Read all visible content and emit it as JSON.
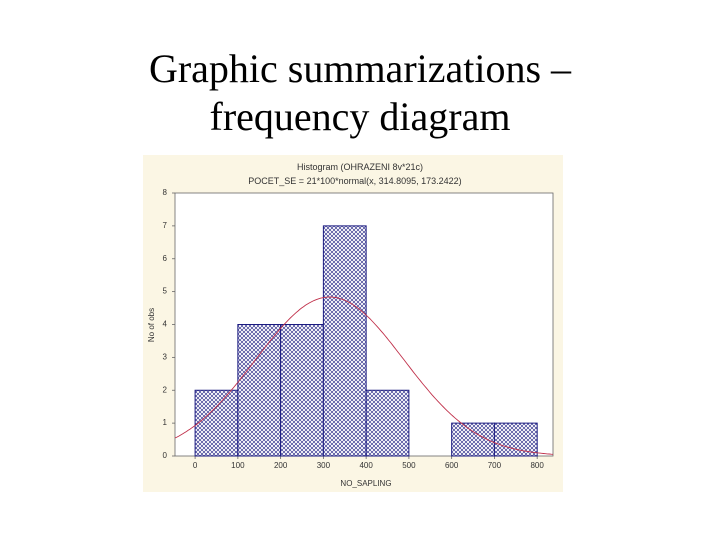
{
  "slide_title": [
    "Graphic summarizations –",
    "frequency diagram"
  ],
  "chart_data": {
    "type": "histogram",
    "title": "Histogram (OHRAZENI 8v*21c)",
    "subtitle": "POCET_SE = 21*100*normal(x, 314.8095, 173.2422)",
    "x_label": "NO_SAPLING",
    "y_label": "No of obs",
    "bins": [
      0,
      100,
      200,
      300,
      400,
      500,
      600,
      700,
      800
    ],
    "values": [
      2,
      4,
      4,
      7,
      2,
      0,
      1,
      1
    ],
    "color": "#1a1a80",
    "fit": {
      "n": 21,
      "width": 100,
      "mean": 314.8095,
      "sd": 173.2422,
      "color": "#c0304a"
    },
    "xlim": [
      -47,
      837
    ],
    "ylim": [
      0,
      8
    ],
    "xticks": [
      0,
      100,
      200,
      300,
      400,
      500,
      600,
      700,
      800
    ],
    "yticks": [
      0,
      1,
      2,
      3,
      4,
      5,
      6,
      7,
      8
    ]
  }
}
